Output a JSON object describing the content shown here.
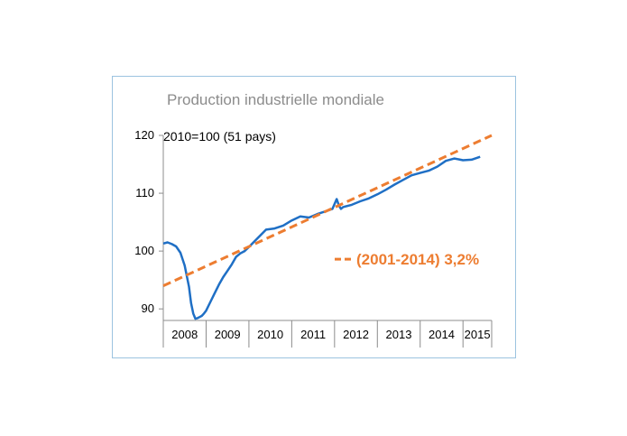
{
  "chart_data": {
    "type": "line",
    "title": "Production industrielle mondiale",
    "subtitle": "2010=100 (51 pays)",
    "xlabel": "",
    "ylabel": "",
    "categories": [
      "2008",
      "2009",
      "2010",
      "2011",
      "2012",
      "2013",
      "2014",
      "2015"
    ],
    "xlim": [
      2008.0,
      2015.67
    ],
    "ylim": [
      88,
      120
    ],
    "yticks": [
      "90",
      "100",
      "110",
      "120"
    ],
    "grid": false,
    "series": [
      {
        "color": "#1f6fc5",
        "style": "solid",
        "x": [
          2008.0,
          2008.1,
          2008.2,
          2008.3,
          2008.4,
          2008.5,
          2008.6,
          2008.65,
          2008.7,
          2008.75,
          2008.8,
          2008.85,
          2008.9,
          2008.95,
          2009.0,
          2009.1,
          2009.2,
          2009.3,
          2009.4,
          2009.5,
          2009.6,
          2009.7,
          2009.8,
          2009.9,
          2010.0,
          2010.2,
          2010.4,
          2010.6,
          2010.8,
          2011.0,
          2011.2,
          2011.4,
          2011.6,
          2011.8,
          2011.95,
          2012.05,
          2012.1,
          2012.15,
          2012.2,
          2012.4,
          2012.6,
          2012.8,
          2013.0,
          2013.2,
          2013.4,
          2013.6,
          2013.8,
          2014.0,
          2014.2,
          2014.4,
          2014.6,
          2014.8,
          2015.0,
          2015.2,
          2015.4
        ],
        "values": [
          101.3,
          101.5,
          101.2,
          100.8,
          99.7,
          97.5,
          93.8,
          91.0,
          89.2,
          88.3,
          88.4,
          88.6,
          88.8,
          89.2,
          89.7,
          91.2,
          92.7,
          94.2,
          95.5,
          96.6,
          97.7,
          99.0,
          99.6,
          100.0,
          100.7,
          102.2,
          103.7,
          103.9,
          104.4,
          105.3,
          106.0,
          105.8,
          106.4,
          106.9,
          107.3,
          109.0,
          107.9,
          107.3,
          107.6,
          108.0,
          108.6,
          109.1,
          109.8,
          110.6,
          111.5,
          112.3,
          113.1,
          113.5,
          113.9,
          114.6,
          115.6,
          116.0,
          115.7,
          115.8,
          116.3
        ]
      },
      {
        "name": "(2001-2014) 3,2%",
        "color": "#ed7d31",
        "style": "dashed",
        "x": [
          2008.0,
          2015.67
        ],
        "values": [
          94.0,
          120.0
        ]
      }
    ],
    "legend": {
      "text": "(2001-2014) 3,2%",
      "placement": "bottom-right",
      "color": "#ed7d31"
    }
  }
}
